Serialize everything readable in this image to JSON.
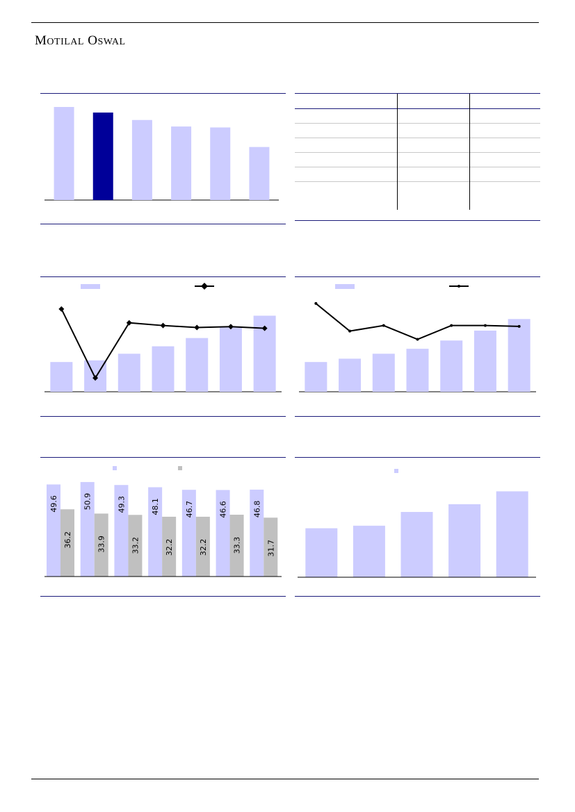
{
  "brand": {
    "name_first": "M",
    "name_first_rest": "otilal",
    "name_second": "O",
    "name_second_rest": "swal"
  },
  "colors": {
    "primary_bar": "#ccccff",
    "highlight_bar": "#000099",
    "grey_bar": "#c0c0c0",
    "line": "#000000",
    "rule": "#1a1a7a"
  },
  "table": {
    "headers": [
      "",
      "",
      ""
    ],
    "rows": [
      [
        "",
        "",
        ""
      ],
      [
        "",
        "",
        ""
      ],
      [
        "",
        "",
        ""
      ],
      [
        "",
        "",
        ""
      ],
      [
        "",
        "",
        ""
      ],
      [
        "",
        "",
        ""
      ]
    ]
  },
  "chart_data": [
    {
      "type": "bar",
      "title": "",
      "categories": [
        "",
        "",
        "",
        "",
        "",
        ""
      ],
      "values": [
        100,
        94,
        86,
        79,
        78,
        57
      ],
      "highlight_index": 1,
      "ylim": [
        0,
        105
      ]
    },
    {
      "type": "bar",
      "title": "",
      "categories": [
        "",
        "",
        "",
        "",
        "",
        "",
        ""
      ],
      "series": [
        {
          "type": "bar",
          "values": [
            36,
            38,
            46,
            55,
            65,
            79,
            92
          ]
        },
        {
          "type": "line",
          "axis": "secondary",
          "values": [
            30,
            5,
            25,
            24,
            23.3,
            23.6,
            23
          ],
          "ylim": [
            0,
            35
          ]
        }
      ],
      "ylim": [
        0,
        100
      ],
      "legend": "top"
    },
    {
      "type": "bar",
      "title": "",
      "categories": [
        "",
        "",
        "",
        "",
        "",
        "",
        ""
      ],
      "series": [
        {
          "type": "bar",
          "values": [
            36,
            40,
            46,
            52,
            62,
            74,
            88
          ]
        },
        {
          "type": "line",
          "axis": "secondary",
          "values": [
            32,
            22,
            24,
            19,
            24,
            24,
            23.7
          ],
          "ylim": [
            0,
            35
          ]
        }
      ],
      "ylim": [
        0,
        100
      ],
      "legend": "top"
    },
    {
      "type": "bar",
      "title": "",
      "categories": [
        "",
        "",
        "",
        "",
        "",
        "",
        ""
      ],
      "series": [
        {
          "values": [
            49.6,
            50.9,
            49.3,
            48.1,
            46.7,
            46.6,
            46.8
          ]
        },
        {
          "values": [
            36.2,
            33.9,
            33.2,
            32.2,
            32.2,
            33.3,
            31.7
          ]
        }
      ],
      "ylim": [
        0,
        52
      ],
      "legend": "top"
    },
    {
      "type": "bar",
      "title": "",
      "categories": [
        "",
        "",
        "",
        "",
        ""
      ],
      "values": [
        57,
        60,
        76,
        85,
        100
      ],
      "ylim": [
        0,
        110
      ],
      "legend": "top"
    }
  ]
}
